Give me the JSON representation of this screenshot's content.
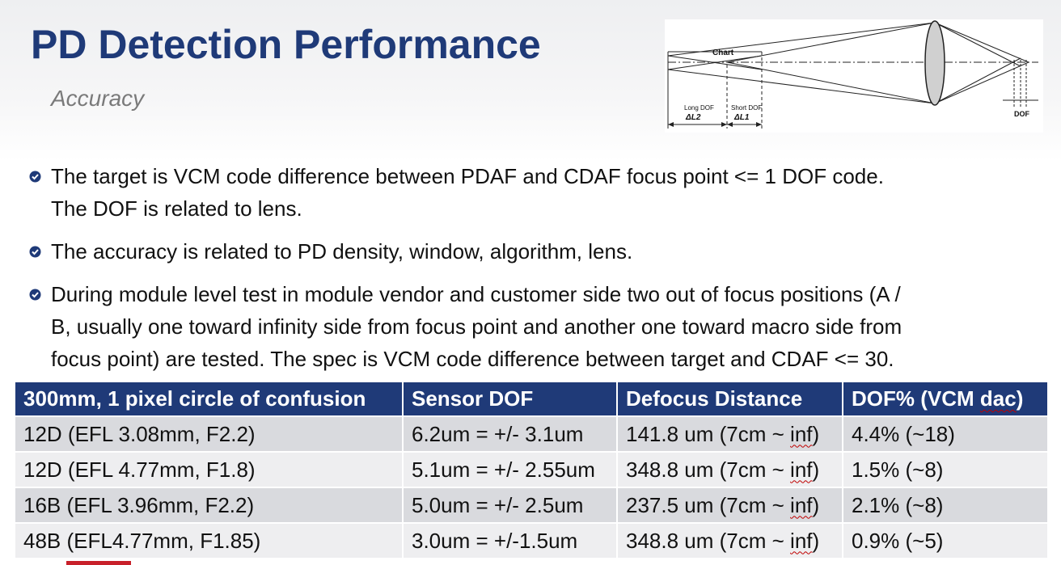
{
  "header": {
    "title": "PD Detection Performance",
    "subtitle": "Accuracy"
  },
  "diagram": {
    "chart_label": "Chart",
    "long_dof_label": "Long DOF",
    "long_dof_symbol": "ΔL2",
    "short_dof_label": "Short DOF",
    "short_dof_symbol": "ΔL1",
    "dof_label": "DOF"
  },
  "bullets": [
    {
      "line1": "The target is VCM code difference between PDAF and CDAF focus point <= 1 DOF code.",
      "line2": "The DOF is related to lens."
    },
    {
      "line1": "The accuracy is related to PD density, window, algorithm, lens."
    },
    {
      "line1": "During module level test in module vendor and customer side two out of focus positions (A /",
      "line2": "B, usually one toward infinity side from focus point and another one toward macro side from",
      "line3": "focus point) are tested. The spec is VCM code difference between target and CDAF <= 30."
    }
  ],
  "table": {
    "headers": [
      "300mm, 1 pixel circle of confusion",
      "Sensor DOF",
      "Defocus Distance",
      "DOF% (VCM dac)"
    ],
    "rows": [
      {
        "config": "12D (EFL 3.08mm, F2.2)",
        "sensor_dof": "6.2um = +/- 3.1um",
        "defocus_pre": "141.8 um (7cm ~ ",
        "defocus_inf": "inf",
        "defocus_post": ")",
        "dof_pct": "4.4% (~18)"
      },
      {
        "config": "12D (EFL 4.77mm, F1.8)",
        "sensor_dof": "5.1um = +/- 2.55um",
        "defocus_pre": "348.8 um (7cm ~ ",
        "defocus_inf": "inf",
        "defocus_post": ")",
        "dof_pct": "1.5% (~8)"
      },
      {
        "config": "16B (EFL 3.96mm, F2.2)",
        "sensor_dof": "5.0um = +/- 2.5um",
        "defocus_pre": "237.5 um (7cm ~ ",
        "defocus_inf": "inf",
        "defocus_post": ")",
        "dof_pct": "2.1% (~8)"
      },
      {
        "config": "48B (EFL4.77mm, F1.85)",
        "sensor_dof": "3.0um = +/-1.5um",
        "defocus_pre": "348.8 um (7cm ~ ",
        "defocus_inf": "inf",
        "defocus_post": ")",
        "dof_pct": "0.9% (~5)"
      }
    ]
  },
  "colors": {
    "title": "#1f3a78",
    "header_bg": "#1f3a78",
    "row_odd": "#d9dade",
    "row_even": "#eeeef0",
    "bullet": "#1f3a78"
  }
}
